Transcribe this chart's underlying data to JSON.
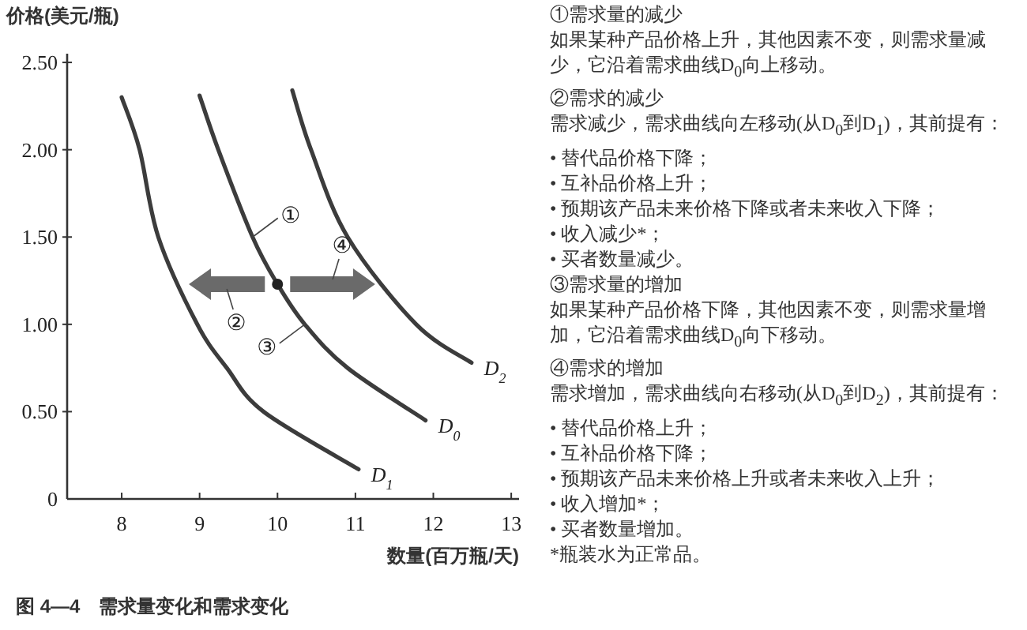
{
  "chart_data": [
    {
      "type": "line",
      "title": "图 4—4　需求量变化和需求变化",
      "xlabel": "数量(百万瓶/天)",
      "ylabel": "价格(美元/瓶)",
      "xlim": [
        7.3,
        13.1
      ],
      "ylim": [
        0,
        2.55
      ],
      "xticks": [
        8,
        9,
        10,
        11,
        12,
        13
      ],
      "yticks": [
        {
          "value": 0,
          "label": "0"
        },
        {
          "value": 0.5,
          "label": "0.50"
        },
        {
          "value": 1,
          "label": "1.00"
        },
        {
          "value": 1.5,
          "label": "1.50"
        },
        {
          "value": 2,
          "label": "2.00"
        },
        {
          "value": 2.5,
          "label": "2.50"
        }
      ],
      "series": [
        {
          "name": "D$_{1}$",
          "color": "#3c3c3c",
          "x": [
            8.0,
            8.23,
            8.47,
            8.97,
            9.35,
            9.82,
            11.04
          ],
          "values": [
            2.3,
            2.0,
            1.5,
            1.0,
            0.75,
            0.5,
            0.17
          ]
        },
        {
          "name": "D$_{0}$",
          "color": "#3c3c3c",
          "x": [
            9.0,
            9.24,
            9.68,
            10.0,
            10.35,
            10.9,
            11.9
          ],
          "values": [
            2.31,
            2.0,
            1.5,
            1.23,
            1.0,
            0.75,
            0.45
          ]
        },
        {
          "name": "D$_{2}$",
          "color": "#3c3c3c",
          "x": [
            10.19,
            10.43,
            10.9,
            11.78,
            12.49
          ],
          "values": [
            2.34,
            2.0,
            1.5,
            1.0,
            0.78
          ]
        },
        {
          "type": "scatter",
          "color": "#222222",
          "x": [
            10.0
          ],
          "values": [
            1.23
          ]
        }
      ],
      "annotations": [
        {
          "text": "①",
          "x": 9.68,
          "y": 1.5
        },
        "②",
        {
          "text": "③",
          "x": 10.35,
          "y": 1.0
        },
        "④"
      ]
    },
    {
      "type": "other",
      "annotations": [
        "①需求量的减少",
        "如果某种产品价格上升，其他因素不变，则需求量减少，它沿着需求曲线D$_{0}$向上移动。",
        "②需求的减少",
        "需求减少，需求曲线向左移动(从D$_{0}$到D$_{1}$)，其前提有：",
        "• 替代品价格下降；",
        "• 互补品价格上升；",
        "• 预期该产品未来价格下降或者未来收入下降；",
        "• 收入减少*；",
        "• 买者数量减少。",
        "③需求量的增加",
        "如果某种产品价格下降，其他因素不变，则需求量增加，它沿着需求曲线D$_{0}$向下移动。",
        "④需求的增加",
        "需求增加，需求曲线向右移动(从D$_{0}$到D$_{2}$)，其前提有：",
        "• 替代品价格上升；",
        "• 互补品价格下降；",
        "• 预期该产品未来价格上升或者未来收入上升；",
        "• 收入增加*；",
        "• 买者数量增加。",
        "*瓶装水为正常品。"
      ]
    }
  ]
}
